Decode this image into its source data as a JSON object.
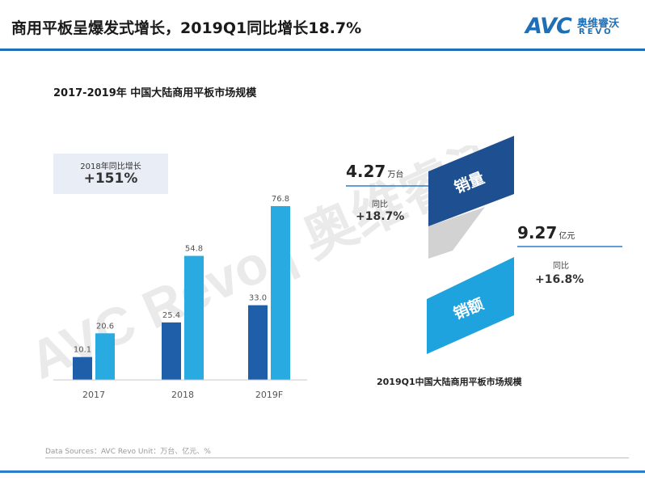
{
  "header": {
    "title": "商用平板呈爆发式增长，2019Q1同比增长18.7%",
    "logo": {
      "mark": "AVC",
      "name_cn": "奥维睿沃",
      "name_en": "REVO"
    }
  },
  "left_panel": {
    "growth_box": {
      "label": "2018年同比增长",
      "value": "+151%"
    }
  },
  "right_panel": {
    "units": {
      "value": "4.27",
      "unit": "万台",
      "yoy_label": "同比",
      "yoy": "+18.7%",
      "tag": "销量"
    },
    "revenue": {
      "value": "9.27",
      "unit": "亿元",
      "yoy_label": "同比",
      "yoy": "+16.8%",
      "tag": "销额"
    },
    "caption": "2019Q1中国大陆商用平板市场规模"
  },
  "watermark": {
    "text": "AVC Revo | 奥维睿沃"
  },
  "footer": {
    "note": "Data Sources：AVC Revo    Unit：万台、亿元、%"
  },
  "colors": {
    "accent": "#1f6fb5",
    "dark_bar": "#1f5ea8",
    "light_bar": "#29abe2",
    "tag_dark": "#1d4f91",
    "tag_light": "#1ea3df"
  },
  "chart_data": {
    "type": "bar",
    "title": "2017-2019年 中国大陆商用平板市场规模",
    "categories": [
      "2017",
      "2018",
      "2019F"
    ],
    "series": [
      {
        "values": [
          10.1,
          25.4,
          33.0
        ]
      },
      {
        "values": [
          20.6,
          54.8,
          76.8
        ]
      }
    ],
    "ylim": [
      0,
      100
    ],
    "grid": false
  }
}
